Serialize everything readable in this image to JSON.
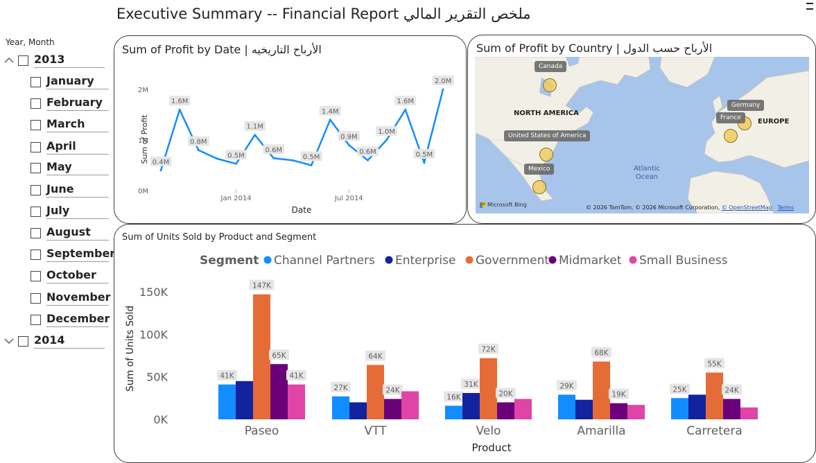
{
  "report": {
    "title": "Executive Summary -- Financial Report ملخص التقرير المالي"
  },
  "slicer": {
    "header": "Year, Month",
    "years": [
      {
        "label": "2013",
        "expanded": true,
        "months": [
          "January",
          "February",
          "March",
          "April",
          "May",
          "June",
          "July",
          "August",
          "September",
          "October",
          "November",
          "December"
        ]
      },
      {
        "label": "2014",
        "expanded": false,
        "months": []
      }
    ]
  },
  "profit_by_date": {
    "title": "Sum of Profit by Date | الأرباح التاريخيه",
    "chart_data": {
      "type": "line",
      "title": "Sum of Profit by Date | الأرباح التاريخيه",
      "xlabel": "Date",
      "ylabel": "Sum of Profit",
      "x_tick_labels": [
        "Jan 2014",
        "Jul 2014"
      ],
      "y_tick_labels": [
        "0M",
        "1M",
        "2M"
      ],
      "ylim": [
        0,
        2.0
      ],
      "x": [
        "2013-09",
        "2013-10",
        "2013-11",
        "2013-12",
        "2014-01",
        "2014-02",
        "2014-03",
        "2014-04",
        "2014-05",
        "2014-06",
        "2014-07",
        "2014-08",
        "2014-09",
        "2014-10",
        "2014-11",
        "2014-12"
      ],
      "values": [
        0.4,
        1.6,
        0.8,
        0.63,
        0.53,
        1.1,
        0.64,
        0.6,
        0.5,
        1.4,
        0.9,
        0.6,
        1.0,
        1.6,
        0.55,
        2.0
      ],
      "data_labels": [
        "0.4M",
        "1.6M",
        "0.8M",
        "",
        "0.5M",
        "1.1M",
        "0.6M",
        "",
        "0.5M",
        "1.4M",
        "0.9M",
        "0.6M",
        "1.0M",
        "1.6M",
        "0.5M",
        "2.0M"
      ],
      "grid": false,
      "color": "#118DFF"
    }
  },
  "profit_by_country": {
    "title": "Sum of Profit by Country | الأرباح حسب الدول",
    "map": {
      "region_labels": [
        "NORTH AMERICA",
        "EUROPE"
      ],
      "ocean_label": [
        "Atlantic",
        "Ocean"
      ],
      "countries": [
        "Canada",
        "United States of America",
        "Mexico",
        "Germany",
        "France"
      ],
      "bing_label": "Microsoft Bing",
      "credit_text": "© 2026 TomTom, © 2026 Microsoft Corporation, ",
      "credit_link": "© OpenStreetMap",
      "terms": "Terms"
    }
  },
  "units_sold": {
    "title": "Sum of Units Sold by Product and Segment",
    "legend_title": "Segment",
    "chart_data": {
      "type": "bar",
      "title": "Sum of Units Sold by Product and Segment",
      "xlabel": "Product",
      "ylabel": "Sum of Units Sold",
      "categories": [
        "Paseo",
        "VTT",
        "Velo",
        "Amarilla",
        "Carretera"
      ],
      "y_tick_labels": [
        "0K",
        "50K",
        "100K",
        "150K"
      ],
      "ylim": [
        0,
        150000
      ],
      "legend_position": "top",
      "series": [
        {
          "name": "Channel Partners",
          "color": "#118DFF",
          "values": [
            41000,
            27000,
            16000,
            29000,
            25000
          ],
          "labels": [
            "41K",
            "27K",
            "16K",
            "29K",
            "25K"
          ]
        },
        {
          "name": "Enterprise",
          "color": "#12239E",
          "values": [
            45000,
            20000,
            31000,
            23000,
            29000
          ],
          "labels": [
            "",
            "",
            "31K",
            "",
            ""
          ]
        },
        {
          "name": "Government",
          "color": "#E66C37",
          "values": [
            147000,
            64000,
            72000,
            68000,
            55000
          ],
          "labels": [
            "147K",
            "64K",
            "72K",
            "68K",
            "55K"
          ]
        },
        {
          "name": "Midmarket",
          "color": "#6B007B",
          "values": [
            65000,
            24000,
            20000,
            19000,
            24000
          ],
          "labels": [
            "65K",
            "24K",
            "20K",
            "19K",
            "24K"
          ]
        },
        {
          "name": "Small Business",
          "color": "#E044A7",
          "values": [
            41000,
            33000,
            24000,
            17000,
            14000
          ],
          "labels": [
            "41K",
            "",
            "",
            "",
            ""
          ]
        }
      ]
    }
  }
}
